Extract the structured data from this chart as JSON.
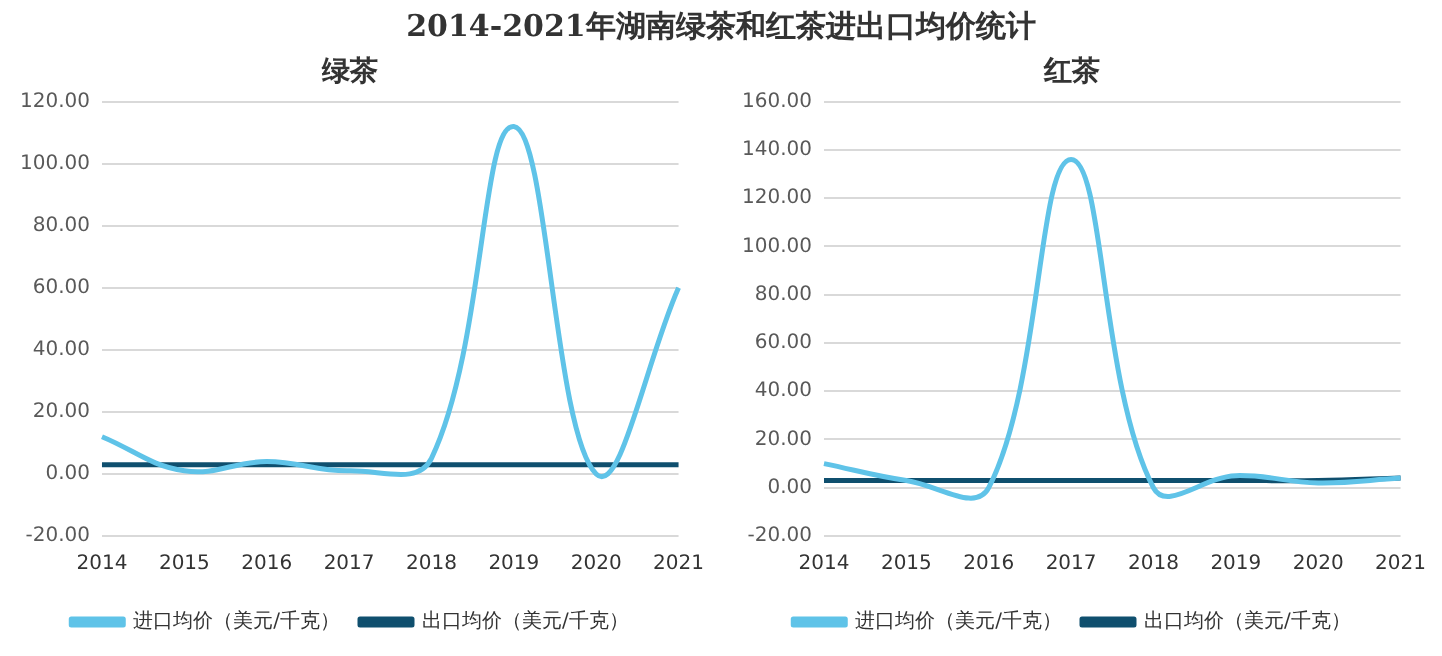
{
  "chart_data": [
    {
      "type": "line",
      "title": "2014-2021年湖南绿茶和红茶进出口均价统计",
      "subtitle": "绿茶",
      "categories": [
        "2014",
        "2015",
        "2016",
        "2017",
        "2018",
        "2019",
        "2020",
        "2021"
      ],
      "series": [
        {
          "name": "进口均价（美元/千克）",
          "color": "#5fc3e8",
          "values": [
            12,
            1,
            4,
            1,
            5,
            112,
            0,
            60
          ]
        },
        {
          "name": "出口均价（美元/千克）",
          "color": "#0f4f6e",
          "values": [
            3,
            3,
            3,
            3,
            3,
            3,
            3,
            3
          ]
        }
      ],
      "ylim": [
        -20,
        120
      ],
      "yticks": [
        {
          "value": -20,
          "label": "-20.00"
        },
        {
          "value": 0,
          "label": "0.00"
        },
        {
          "value": 20,
          "label": "20.00"
        },
        {
          "value": 40,
          "label": "40.00"
        },
        {
          "value": 60,
          "label": "60.00"
        },
        {
          "value": 80,
          "label": "80.00"
        },
        {
          "value": 100,
          "label": "100.00"
        },
        {
          "value": 120,
          "label": "120.00"
        }
      ],
      "grid": "y",
      "legend": "bottom",
      "marker": "none",
      "line_style": "solid"
    },
    {
      "type": "line",
      "subtitle": "红茶",
      "categories": [
        "2014",
        "2015",
        "2016",
        "2017",
        "2018",
        "2019",
        "2020",
        "2021"
      ],
      "series": [
        {
          "name": "进口均价（美元/千克）",
          "color": "#5fc3e8",
          "values": [
            10,
            3,
            0,
            136,
            0,
            5,
            2,
            4
          ]
        },
        {
          "name": "出口均价（美元/千克）",
          "color": "#0f4f6e",
          "values": [
            3,
            3,
            3,
            3,
            3,
            3,
            3,
            4
          ]
        }
      ],
      "ylim": [
        -20,
        160
      ],
      "yticks": [
        {
          "value": -20,
          "label": "-20.00"
        },
        {
          "value": 0,
          "label": "0.00"
        },
        {
          "value": 20,
          "label": "20.00"
        },
        {
          "value": 40,
          "label": "40.00"
        },
        {
          "value": 60,
          "label": "60.00"
        },
        {
          "value": 80,
          "label": "80.00"
        },
        {
          "value": 100,
          "label": "100.00"
        },
        {
          "value": 120,
          "label": "120.00"
        },
        {
          "value": 140,
          "label": "140.00"
        },
        {
          "value": 160,
          "label": "160.00"
        }
      ],
      "grid": "y",
      "legend": "bottom",
      "marker": "none",
      "line_style": "solid"
    }
  ]
}
